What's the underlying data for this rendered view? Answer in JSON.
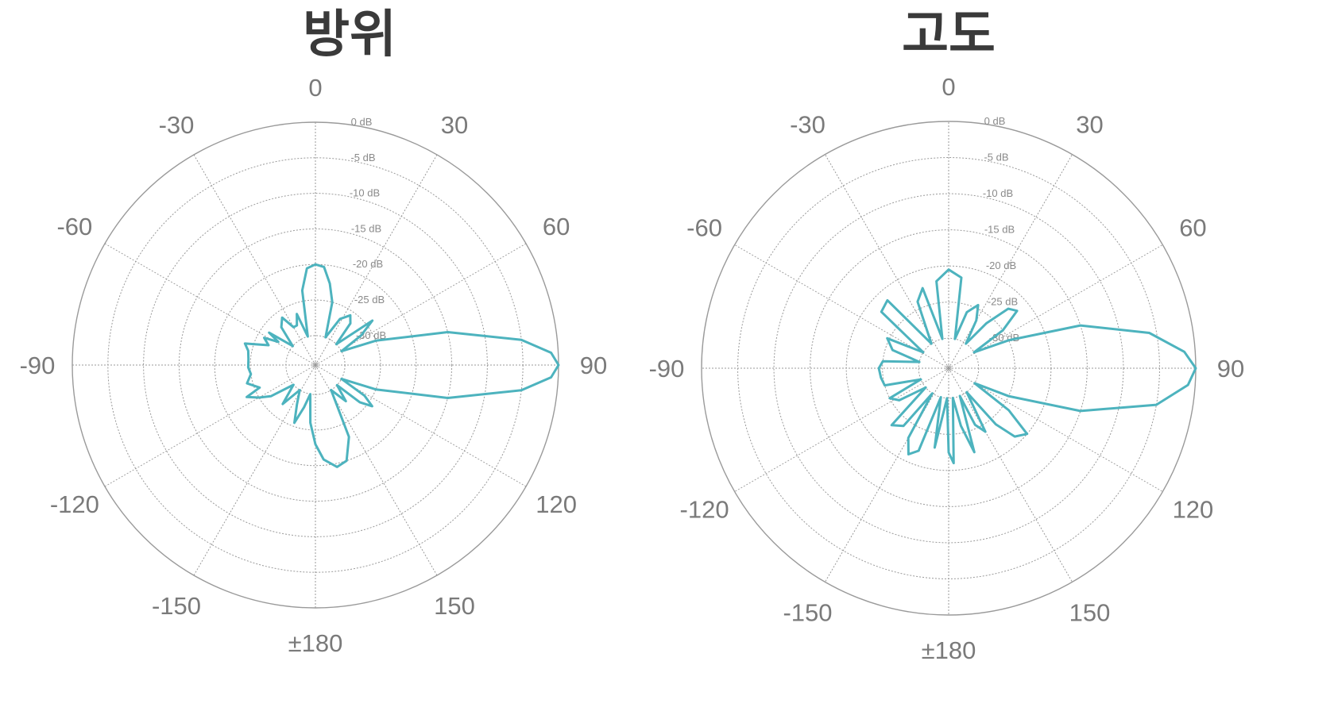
{
  "chart_data": [
    {
      "type": "line",
      "title": "방위",
      "radial_axis": {
        "ticks": [
          "0 dB",
          "-5 dB",
          "-10 dB",
          "-15 dB",
          "-20 dB",
          "-25 dB",
          "-30 dB"
        ],
        "range_db": [
          -30,
          0
        ]
      },
      "angular_axis": {
        "ticks": [
          {
            "deg": 0,
            "label": "0"
          },
          {
            "deg": 30,
            "label": "30"
          },
          {
            "deg": 60,
            "label": "60"
          },
          {
            "deg": 90,
            "label": "90"
          },
          {
            "deg": 120,
            "label": "120"
          },
          {
            "deg": 150,
            "label": "150"
          },
          {
            "deg": 180,
            "label": "±180"
          },
          {
            "deg": -150,
            "label": "-150"
          },
          {
            "deg": -120,
            "label": "-120"
          },
          {
            "deg": -90,
            "label": "-90"
          },
          {
            "deg": -60,
            "label": "-60"
          },
          {
            "deg": -30,
            "label": "-30"
          }
        ]
      },
      "series": [
        {
          "color": "#4db3be",
          "points": [
            [
              -15,
              -30
            ],
            [
              -10,
              -23.5
            ],
            [
              -5,
              -20.5
            ],
            [
              0,
              -20
            ],
            [
              5,
              -20.3
            ],
            [
              10,
              -22.5
            ],
            [
              15,
              -25
            ],
            [
              20,
              -30
            ],
            [
              28,
              -26.8
            ],
            [
              35,
              -25.6
            ],
            [
              40,
              -26.5
            ],
            [
              45,
              -30
            ],
            [
              52,
              -24
            ],
            [
              57,
              -26.5
            ],
            [
              62,
              -30
            ],
            [
              68,
              -25
            ],
            [
              76,
              -15
            ],
            [
              83,
              -5
            ],
            [
              87,
              -1
            ],
            [
              90,
              0
            ],
            [
              93,
              -1
            ],
            [
              97,
              -5
            ],
            [
              104,
              -15
            ],
            [
              112,
              -25
            ],
            [
              118,
              -30
            ],
            [
              122,
              -26
            ],
            [
              126,
              -24.3
            ],
            [
              130,
              -26
            ],
            [
              133,
              -30
            ],
            [
              140,
              -27.5
            ],
            [
              148,
              -30
            ],
            [
              155,
              -23
            ],
            [
              162,
              -20
            ],
            [
              168,
              -19.5
            ],
            [
              175,
              -20.8
            ],
            [
              180,
              -23
            ],
            [
              185,
              -26
            ],
            [
              190,
              -30
            ],
            [
              195,
              -28
            ],
            [
              200,
              -25.5
            ],
            [
              205,
              -28
            ],
            [
              212,
              -30
            ],
            [
              220,
              -27
            ],
            [
              228,
              -30
            ],
            [
              235,
              -26.5
            ],
            [
              240,
              -25
            ],
            [
              245,
              -23.5
            ],
            [
              248,
              -25.7
            ],
            [
              255,
              -24.2
            ],
            [
              262,
              -25
            ],
            [
              268,
              -24.7
            ],
            [
              275,
              -24.7
            ],
            [
              282,
              -24.5
            ],
            [
              287,
              -23.8
            ],
            [
              293,
              -27
            ],
            [
              298,
              -26
            ],
            [
              302,
              -28
            ],
            [
              305,
              -26.2
            ],
            [
              310,
              -30
            ],
            [
              318,
              -27
            ],
            [
              325,
              -26
            ],
            [
              330,
              -28
            ],
            [
              335,
              -28
            ],
            [
              340,
              -26.5
            ],
            [
              345,
              -30
            ]
          ]
        }
      ]
    },
    {
      "type": "line",
      "title": "고도",
      "radial_axis": {
        "ticks": [
          "0 dB",
          "-5 dB",
          "-10 dB",
          "-15 dB",
          "-20 dB",
          "-25 dB",
          "-30 dB"
        ],
        "range_db": [
          -30,
          0
        ]
      },
      "angular_axis": {
        "ticks": [
          {
            "deg": 0,
            "label": "0"
          },
          {
            "deg": 30,
            "label": "30"
          },
          {
            "deg": 60,
            "label": "60"
          },
          {
            "deg": 90,
            "label": "90"
          },
          {
            "deg": 120,
            "label": "120"
          },
          {
            "deg": 150,
            "label": "150"
          },
          {
            "deg": 180,
            "label": "±180"
          },
          {
            "deg": -150,
            "label": "-150"
          },
          {
            "deg": -120,
            "label": "-120"
          },
          {
            "deg": -90,
            "label": "-90"
          },
          {
            "deg": -60,
            "label": "-60"
          },
          {
            "deg": -30,
            "label": "-30"
          }
        ]
      },
      "series": [
        {
          "color": "#4db3be",
          "points": [
            [
              -12,
              -30
            ],
            [
              -8,
              -22
            ],
            [
              0,
              -20.5
            ],
            [
              8,
              -21.5
            ],
            [
              12,
              -30
            ],
            [
              18,
              -26
            ],
            [
              25,
              -24.5
            ],
            [
              30,
              -26.5
            ],
            [
              35,
              -30
            ],
            [
              40,
              -26
            ],
            [
              45,
              -22.5
            ],
            [
              50,
              -21.8
            ],
            [
              55,
              -25
            ],
            [
              58,
              -30
            ],
            [
              65,
              -25
            ],
            [
              72,
              -15
            ],
            [
              80,
              -6
            ],
            [
              86,
              -1.5
            ],
            [
              90,
              0
            ],
            [
              94,
              -1
            ],
            [
              100,
              -5
            ],
            [
              108,
              -15
            ],
            [
              115,
              -25
            ],
            [
              120,
              -30
            ],
            [
              125,
              -24
            ],
            [
              130,
              -20
            ],
            [
              136,
              -21
            ],
            [
              140,
              -24
            ],
            [
              143,
              -30
            ],
            [
              150,
              -24
            ],
            [
              155,
              -25.5
            ],
            [
              158,
              -30
            ],
            [
              163,
              -22
            ],
            [
              168,
              -26
            ],
            [
              172,
              -30
            ],
            [
              177,
              -21
            ],
            [
              180,
              -22.5
            ],
            [
              183,
              -30
            ],
            [
              190,
              -23
            ],
            [
              195,
              -30
            ],
            [
              200,
              -22
            ],
            [
              205,
              -21
            ],
            [
              210,
              -23
            ],
            [
              213,
              -30
            ],
            [
              218,
              -24
            ],
            [
              225,
              -23
            ],
            [
              230,
              -30
            ],
            [
              237,
              -26
            ],
            [
              243,
              -25
            ],
            [
              248,
              -30
            ],
            [
              255,
              -25
            ],
            [
              262,
              -24.7
            ],
            [
              270,
              -24.5
            ],
            [
              276,
              -25
            ],
            [
              282,
              -30
            ],
            [
              288,
              -26
            ],
            [
              296,
              -24.7
            ],
            [
              302,
              -30
            ],
            [
              310,
              -22
            ],
            [
              318,
              -21.5
            ],
            [
              325,
              -30
            ],
            [
              335,
              -24
            ],
            [
              342,
              -22.5
            ],
            [
              348,
              -30
            ]
          ]
        }
      ]
    }
  ]
}
